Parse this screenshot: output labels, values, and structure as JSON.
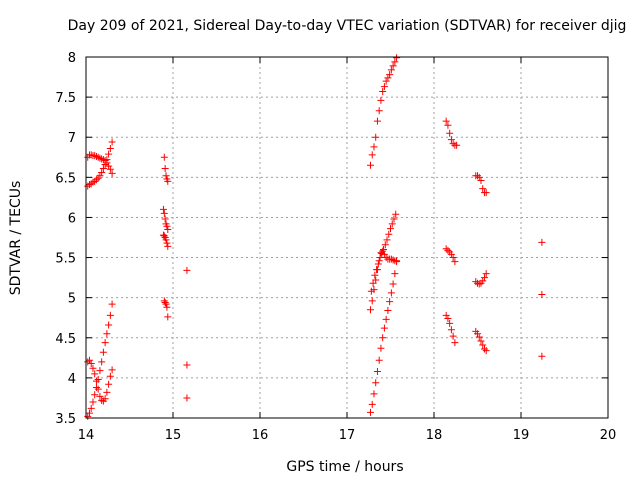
{
  "chart_data": {
    "type": "scatter",
    "title": "Day 209 of 2021, Sidereal Day-to-day VTEC variation (SDTVAR) for receiver djig",
    "xlabel": "GPS time / hours",
    "ylabel": "SDTVAR / TECUs",
    "xlim": [
      14,
      20
    ],
    "ylim": [
      3.5,
      8
    ],
    "xticks": [
      "14",
      "15",
      "16",
      "17",
      "18",
      "19",
      "20"
    ],
    "yticks": [
      "3.5",
      "4",
      "4.5",
      "5",
      "5.5",
      "6",
      "6.5",
      "7",
      "7.5",
      "8"
    ],
    "grid": true,
    "marker": "+",
    "marker_color": "#ff0000",
    "series": [
      {
        "name": "arc-14-upper-a",
        "x": [
          14.02,
          14.04,
          14.06,
          14.08,
          14.1,
          14.12,
          14.14,
          14.16,
          14.18,
          14.2,
          14.22,
          14.24,
          14.26,
          14.28,
          14.3
        ],
        "y": [
          6.75,
          6.78,
          6.78,
          6.77,
          6.77,
          6.76,
          6.75,
          6.74,
          6.73,
          6.72,
          6.71,
          6.68,
          6.64,
          6.6,
          6.55
        ]
      },
      {
        "name": "arc-14-upper-b",
        "x": [
          14.02,
          14.04,
          14.06,
          14.08,
          14.1,
          14.12,
          14.14,
          14.16,
          14.18,
          14.2,
          14.22,
          14.24,
          14.26,
          14.28,
          14.3
        ],
        "y": [
          6.39,
          6.41,
          6.42,
          6.44,
          6.45,
          6.47,
          6.49,
          6.52,
          6.56,
          6.61,
          6.66,
          6.72,
          6.79,
          6.86,
          6.94
        ]
      },
      {
        "name": "arc-14-lower-a",
        "x": [
          14.02,
          14.04,
          14.06,
          14.08,
          14.1,
          14.12,
          14.14,
          14.16,
          14.18,
          14.2,
          14.22,
          14.24,
          14.26,
          14.28,
          14.3
        ],
        "y": [
          3.52,
          3.56,
          3.62,
          3.7,
          3.79,
          3.88,
          3.98,
          4.09,
          4.2,
          4.32,
          4.44,
          4.55,
          4.66,
          4.78,
          4.92
        ]
      },
      {
        "name": "arc-14-lower-b",
        "x": [
          14.02,
          14.04,
          14.06,
          14.08,
          14.1,
          14.12,
          14.14,
          14.16,
          14.18,
          14.2,
          14.22,
          14.24,
          14.26,
          14.28,
          14.3
        ],
        "y": [
          4.2,
          4.22,
          4.18,
          4.12,
          4.05,
          3.96,
          3.86,
          3.77,
          3.72,
          3.71,
          3.74,
          3.82,
          3.92,
          4.02,
          4.1
        ]
      },
      {
        "name": "arc-15-a",
        "x": [
          14.9,
          14.91,
          14.92,
          14.93,
          14.94
        ],
        "y": [
          6.75,
          6.61,
          6.52,
          6.48,
          6.45
        ]
      },
      {
        "name": "arc-15-b",
        "x": [
          14.89,
          14.9,
          14.91,
          14.92,
          14.93,
          14.94
        ],
        "y": [
          6.1,
          6.05,
          5.98,
          5.92,
          5.89,
          5.85
        ]
      },
      {
        "name": "arc-15-c",
        "x": [
          14.89,
          14.9,
          14.91,
          14.92,
          14.93,
          14.94
        ],
        "y": [
          5.78,
          5.77,
          5.75,
          5.72,
          5.68,
          5.64
        ]
      },
      {
        "name": "arc-15-d",
        "x": [
          14.9,
          14.91,
          14.92,
          14.93,
          14.94
        ],
        "y": [
          4.96,
          4.94,
          4.92,
          4.88,
          4.76
        ]
      },
      {
        "name": "isolated-15",
        "x": [
          15.16,
          15.16,
          15.16
        ],
        "y": [
          5.34,
          4.16,
          3.75
        ]
      },
      {
        "name": "arc-17-top",
        "x": [
          17.27,
          17.29,
          17.31,
          17.33,
          17.35,
          17.37,
          17.39,
          17.41,
          17.43,
          17.45,
          17.47,
          17.49,
          17.51,
          17.53,
          17.55,
          17.57
        ],
        "y": [
          6.65,
          6.78,
          6.88,
          7.0,
          7.2,
          7.33,
          7.46,
          7.57,
          7.63,
          7.7,
          7.74,
          7.78,
          7.84,
          7.89,
          7.94,
          7.99
        ]
      },
      {
        "name": "arc-17-mid-a",
        "x": [
          17.28,
          17.3,
          17.32,
          17.34,
          17.36,
          17.38,
          17.4,
          17.42,
          17.44,
          17.46,
          17.48,
          17.5,
          17.52,
          17.54,
          17.56
        ],
        "y": [
          5.08,
          5.18,
          5.28,
          5.35,
          5.42,
          5.5,
          5.55,
          5.6,
          5.66,
          5.72,
          5.79,
          5.86,
          5.92,
          5.98,
          6.04
        ]
      },
      {
        "name": "arc-17-mid-b",
        "x": [
          17.27,
          17.29,
          17.31,
          17.33,
          17.35,
          17.37,
          17.39,
          17.41,
          17.43,
          17.45,
          17.47,
          17.49,
          17.51,
          17.53,
          17.55,
          17.57
        ],
        "y": [
          4.85,
          4.96,
          5.1,
          5.22,
          5.35,
          5.46,
          5.56,
          5.58,
          5.54,
          5.5,
          5.48,
          5.48,
          5.48,
          5.47,
          5.46,
          5.46
        ]
      },
      {
        "name": "arc-17-low",
        "x": [
          17.27,
          17.29,
          17.31,
          17.33,
          17.35,
          17.37,
          17.39,
          17.41,
          17.43,
          17.45,
          17.47,
          17.49,
          17.51,
          17.53,
          17.55,
          17.57
        ],
        "y": [
          3.57,
          3.67,
          3.8,
          3.94,
          4.08,
          4.22,
          4.37,
          4.5,
          4.62,
          4.73,
          4.84,
          4.95,
          5.06,
          5.17,
          5.3,
          5.45
        ]
      },
      {
        "name": "arc-18-a",
        "x": [
          18.14,
          18.16,
          18.18,
          18.2,
          18.22,
          18.24,
          18.26
        ],
        "y": [
          7.2,
          7.15,
          7.05,
          6.97,
          6.92,
          6.9,
          6.9
        ]
      },
      {
        "name": "arc-18-b",
        "x": [
          18.14,
          18.16,
          18.18,
          18.2,
          18.22,
          18.24
        ],
        "y": [
          5.61,
          5.59,
          5.57,
          5.54,
          5.5,
          5.45
        ]
      },
      {
        "name": "arc-18-c",
        "x": [
          18.14,
          18.16,
          18.18,
          18.2,
          18.22,
          18.24
        ],
        "y": [
          4.78,
          4.74,
          4.68,
          4.6,
          4.52,
          4.44
        ]
      },
      {
        "name": "arc-185-a",
        "x": [
          18.48,
          18.5,
          18.52,
          18.54,
          18.56,
          18.58,
          18.6
        ],
        "y": [
          6.52,
          6.52,
          6.5,
          6.46,
          6.36,
          6.31,
          6.31
        ]
      },
      {
        "name": "arc-185-b",
        "x": [
          18.48,
          18.5,
          18.52,
          18.54,
          18.56,
          18.58,
          18.6
        ],
        "y": [
          5.2,
          5.18,
          5.17,
          5.18,
          5.21,
          5.25,
          5.3
        ]
      },
      {
        "name": "arc-185-c",
        "x": [
          18.48,
          18.5,
          18.52,
          18.54,
          18.56,
          18.58,
          18.6
        ],
        "y": [
          4.58,
          4.55,
          4.51,
          4.46,
          4.41,
          4.36,
          4.34
        ]
      },
      {
        "name": "isolated-19",
        "x": [
          19.24,
          19.24,
          19.24
        ],
        "y": [
          5.69,
          5.04,
          4.27
        ]
      }
    ]
  }
}
